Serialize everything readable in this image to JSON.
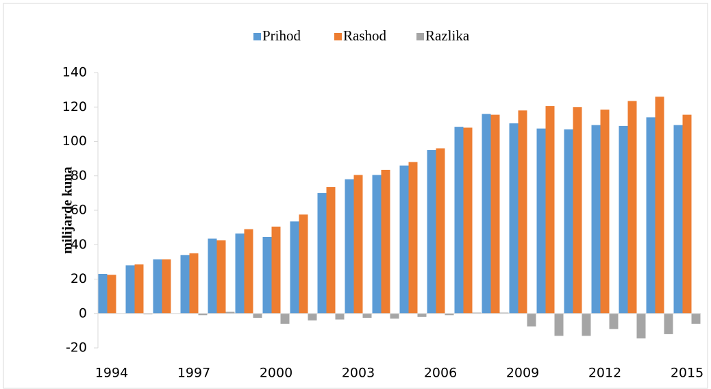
{
  "chart_data": {
    "type": "bar",
    "categories": [
      "1994",
      null,
      null,
      "1997",
      null,
      null,
      "2000",
      null,
      null,
      "2003",
      null,
      null,
      "2006",
      null,
      null,
      "2009",
      null,
      null,
      "2012",
      null,
      null,
      "2015"
    ],
    "series": [
      {
        "name": "Prihod",
        "color": "#5b9bd5",
        "values": [
          23,
          28,
          31.5,
          34,
          43.5,
          46.5,
          44.5,
          53.5,
          70,
          78,
          80.5,
          86,
          95,
          108.5,
          116,
          110.5,
          107.5,
          107,
          109.5,
          109,
          114,
          109.5
        ]
      },
      {
        "name": "Rashod",
        "color": "#ed7d31",
        "values": [
          22.5,
          28.5,
          31.5,
          35,
          42.5,
          49,
          50.5,
          57.5,
          73.5,
          80.5,
          83.5,
          88,
          96,
          108,
          115.5,
          118,
          120.5,
          120,
          118.5,
          123.5,
          126,
          115.5
        ]
      },
      {
        "name": "Razlika",
        "color": "#a5a5a5",
        "values": [
          0,
          -0.5,
          0,
          -1,
          1,
          -2.5,
          -6,
          -4,
          -3.5,
          -2.5,
          -3,
          -2,
          -1,
          0.5,
          0.5,
          -7.5,
          -13,
          -13,
          -9,
          -14.5,
          -12,
          -6
        ]
      }
    ],
    "y_label": "milijarde kuna",
    "ylim": [
      -20,
      140
    ],
    "yticks": [
      -20,
      0,
      20,
      40,
      60,
      80,
      100,
      120,
      140
    ],
    "grid": false,
    "legend": "top"
  }
}
